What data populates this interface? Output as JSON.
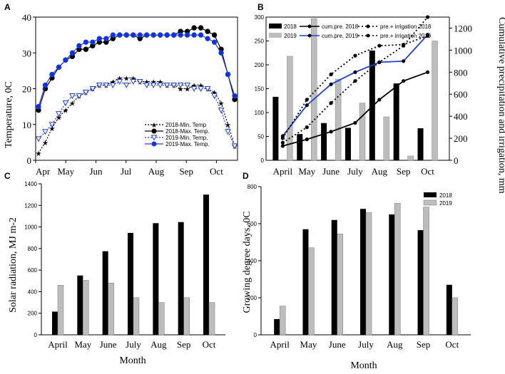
{
  "chart_data": [
    {
      "panel": "A",
      "type": "line",
      "ylabel": "Temperature, 0C",
      "ylim": [
        0,
        40
      ],
      "yticks": [
        0,
        10,
        20,
        30,
        40
      ],
      "xticks": [
        "Apr",
        "May",
        "Jun",
        "Jul",
        "Aug",
        "Sep",
        "Oct"
      ],
      "legend": [
        "2018-Min. Temp",
        "2018-Max. Temp.",
        "2019-Min. Temp.",
        "2019-Max. Temp."
      ],
      "legend_position": "bottom-right",
      "series": [
        {
          "name": "2018-Min. Temp",
          "values": [
            2,
            5,
            9,
            12,
            14,
            16,
            18,
            19,
            20,
            21,
            21,
            22,
            23,
            23,
            23,
            22,
            22,
            22,
            22,
            21,
            21,
            20,
            20,
            21,
            21,
            20,
            19,
            16,
            10,
            4
          ]
        },
        {
          "name": "2018-Max. Temp.",
          "values": [
            14,
            20,
            23,
            26,
            28,
            29,
            31,
            31,
            32,
            33,
            33,
            34,
            35,
            35,
            35,
            34,
            35,
            35,
            35,
            35,
            35,
            36,
            36,
            37,
            37,
            36,
            35,
            31,
            24,
            17
          ]
        },
        {
          "name": "2019-Min. Temp.",
          "values": [
            6,
            8,
            10,
            13,
            16,
            18,
            18,
            19,
            20,
            21,
            21,
            21,
            22,
            21,
            22,
            22,
            21,
            21,
            21,
            21,
            21,
            21,
            21,
            20,
            20,
            20,
            18,
            14,
            8,
            4
          ]
        },
        {
          "name": "2019-Max. Temp.",
          "values": [
            15,
            21,
            24,
            26,
            28,
            30,
            32,
            33,
            33,
            34,
            34,
            35,
            35,
            35,
            35,
            35,
            35,
            35,
            35,
            35,
            35,
            35,
            35,
            35,
            35,
            34,
            33,
            30,
            24,
            18
          ]
        }
      ]
    },
    {
      "panel": "B",
      "type": "bar",
      "categories": [
        "April",
        "May",
        "June",
        "July",
        "Aug",
        "Sep",
        "Oct"
      ],
      "ylim_left": [
        0,
        300
      ],
      "yticks_left": [
        0,
        50,
        100,
        150,
        200,
        250,
        300
      ],
      "ylim_right": [
        0,
        1300
      ],
      "yticks_right": [
        0,
        200,
        400,
        600,
        800,
        1000,
        1200
      ],
      "ylabel_right": "Cumulative precipitation and irrigation, mm",
      "legend_col1": [
        "2018",
        "2019"
      ],
      "legend_col2": [
        "cum.pre. 2018",
        "cum.pre. 2019"
      ],
      "legend_col3": [
        "pre.+ irrigation 2018",
        "pre.+ irrigation 2019"
      ],
      "series": [
        {
          "name": "2018",
          "values": [
            133,
            55,
            78,
            68,
            230,
            161,
            67
          ]
        },
        {
          "name": "2019",
          "values": [
            218,
            297,
            170,
            120,
            91,
            9,
            250
          ]
        },
        {
          "name": "cum.pre. 2018",
          "values": [
            130,
            190,
            260,
            340,
            550,
            720,
            800
          ]
        },
        {
          "name": "cum.pre. 2019",
          "values": [
            220,
            500,
            690,
            800,
            890,
            900,
            1140
          ]
        },
        {
          "name": "pre.+ irrigation 2018",
          "values": [
            160,
            300,
            520,
            720,
            890,
            1040,
            1300
          ]
        },
        {
          "name": "pre.+ irrigation 2019",
          "values": [
            200,
            550,
            780,
            950,
            1040,
            1050,
            1130
          ]
        }
      ]
    },
    {
      "panel": "C",
      "type": "bar",
      "categories": [
        "April",
        "May",
        "June",
        "July",
        "Aug",
        "Sep",
        "Oct"
      ],
      "xlabel": "Month",
      "ylabel": "Solar radiation, MJ m-2",
      "ylim": [
        0,
        1400
      ],
      "yticks": [
        0,
        200,
        400,
        600,
        800,
        1000,
        1200,
        1400
      ],
      "series": [
        {
          "name": "2018",
          "values": [
            215,
            550,
            775,
            945,
            1035,
            1045,
            1300
          ]
        },
        {
          "name": "2019",
          "values": [
            460,
            505,
            480,
            345,
            300,
            345,
            300
          ]
        }
      ]
    },
    {
      "panel": "D",
      "type": "bar",
      "categories": [
        "April",
        "May",
        "June",
        "July",
        "Aug",
        "Sep",
        "Oct"
      ],
      "xlabel": "Month",
      "ylabel": "Growing degree days, 0C",
      "ylim": [
        0,
        800
      ],
      "yticks": [
        0,
        200,
        400,
        600,
        800
      ],
      "legend": [
        "2018",
        "2019"
      ],
      "legend_position": "top-right",
      "series": [
        {
          "name": "2018",
          "values": [
            85,
            570,
            620,
            680,
            650,
            565,
            270
          ]
        },
        {
          "name": "2019",
          "values": [
            155,
            470,
            545,
            660,
            710,
            690,
            200
          ]
        }
      ]
    }
  ],
  "colors": {
    "black": "#000000",
    "gray": "#bdbdbd",
    "blue": "#1f3fd8",
    "blueMarker": "#1030e0"
  }
}
